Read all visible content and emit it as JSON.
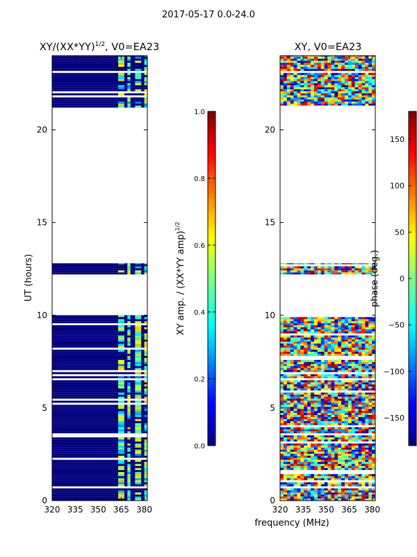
{
  "suptitle": "2017-05-17 0.0-24.0",
  "chart_data": [
    {
      "type": "heatmap",
      "title": "XY/(XX*YY)",
      "title_exponent": "1/2",
      "title_suffix": ", V0=EA23",
      "xlabel": "",
      "ylabel": "UT (hours)",
      "xlim": [
        320,
        382
      ],
      "ylim": [
        0,
        24
      ],
      "xticks": [
        320,
        335,
        350,
        365,
        380
      ],
      "yticks": [
        0,
        5,
        10,
        15,
        20
      ],
      "data_ut_ranges": [
        [
          0,
          10.0
        ],
        [
          12.2,
          12.8
        ],
        [
          21.2,
          24
        ]
      ],
      "signal_channels_mhz": [
        [
          363,
          367
        ],
        [
          369,
          371
        ],
        [
          374,
          378
        ],
        [
          380,
          382
        ]
      ],
      "colorbar": {
        "label": "XY amp. / (XX*YY amp)",
        "label_exponent": "1/2",
        "range": [
          0.0,
          1.0
        ],
        "ticks": [
          "0.0",
          "0.2",
          "0.4",
          "0.6",
          "0.8",
          "1.0"
        ],
        "colormap": "jet"
      }
    },
    {
      "type": "heatmap",
      "title": "XY, V0=EA23",
      "xlabel": "frequency (MHz)",
      "ylabel": "",
      "xlim": [
        320,
        382
      ],
      "ylim": [
        0,
        24
      ],
      "xticks": [
        320,
        335,
        350,
        365,
        380
      ],
      "yticks": [
        0,
        5,
        10,
        15,
        20
      ],
      "data_ut_ranges": [
        [
          0,
          10.0
        ],
        [
          12.2,
          12.8
        ],
        [
          21.2,
          24
        ]
      ],
      "colorbar": {
        "label": "phase (deg.)",
        "range": [
          -180,
          180
        ],
        "ticks": [
          "150",
          "100",
          "50",
          "0",
          "−50",
          "−100",
          "−150"
        ],
        "tick_values": [
          150,
          100,
          50,
          0,
          -50,
          -100,
          -150
        ],
        "colormap": "jet"
      }
    }
  ],
  "colors": {
    "jet": [
      "#00007f",
      "#0000ff",
      "#007fff",
      "#00ffff",
      "#7fff7f",
      "#ffff00",
      "#ff7f00",
      "#ff0000",
      "#7f0000"
    ],
    "axis": "#000000",
    "background": "#ffffff"
  }
}
